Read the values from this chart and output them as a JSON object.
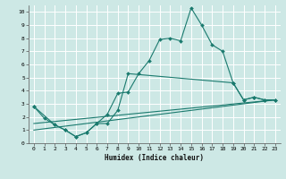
{
  "title": "",
  "xlabel": "Humidex (Indice chaleur)",
  "background_color": "#cde8e5",
  "grid_color": "#ffffff",
  "line_color": "#1a7a6e",
  "xlim": [
    -0.5,
    23.5
  ],
  "ylim": [
    0,
    10.5
  ],
  "xticks": [
    0,
    1,
    2,
    3,
    4,
    5,
    6,
    7,
    8,
    9,
    10,
    11,
    12,
    13,
    14,
    15,
    16,
    17,
    18,
    19,
    20,
    21,
    22,
    23
  ],
  "yticks": [
    0,
    1,
    2,
    3,
    4,
    5,
    6,
    7,
    8,
    9,
    10
  ],
  "line1_x": [
    0,
    1,
    2,
    3,
    4,
    5,
    6,
    7,
    8,
    9,
    10,
    11,
    12,
    13,
    14,
    15,
    16,
    17,
    18,
    19,
    20,
    21,
    22,
    23
  ],
  "line1_y": [
    2.8,
    1.9,
    1.4,
    1.0,
    0.5,
    0.8,
    1.5,
    2.2,
    3.8,
    3.9,
    5.3,
    6.3,
    7.9,
    8.0,
    7.8,
    10.3,
    9.0,
    7.5,
    7.0,
    4.6,
    3.3,
    3.5,
    3.3,
    3.3
  ],
  "line2_x": [
    0,
    2,
    3,
    4,
    5,
    6,
    7,
    8,
    9,
    19,
    20,
    21,
    22,
    23
  ],
  "line2_y": [
    2.8,
    1.4,
    1.0,
    0.5,
    0.8,
    1.5,
    1.5,
    2.5,
    5.3,
    4.6,
    3.3,
    3.5,
    3.3,
    3.3
  ],
  "line3_x": [
    0,
    23
  ],
  "line3_y": [
    1.0,
    3.3
  ],
  "line4_x": [
    0,
    23
  ],
  "line4_y": [
    1.5,
    3.3
  ]
}
